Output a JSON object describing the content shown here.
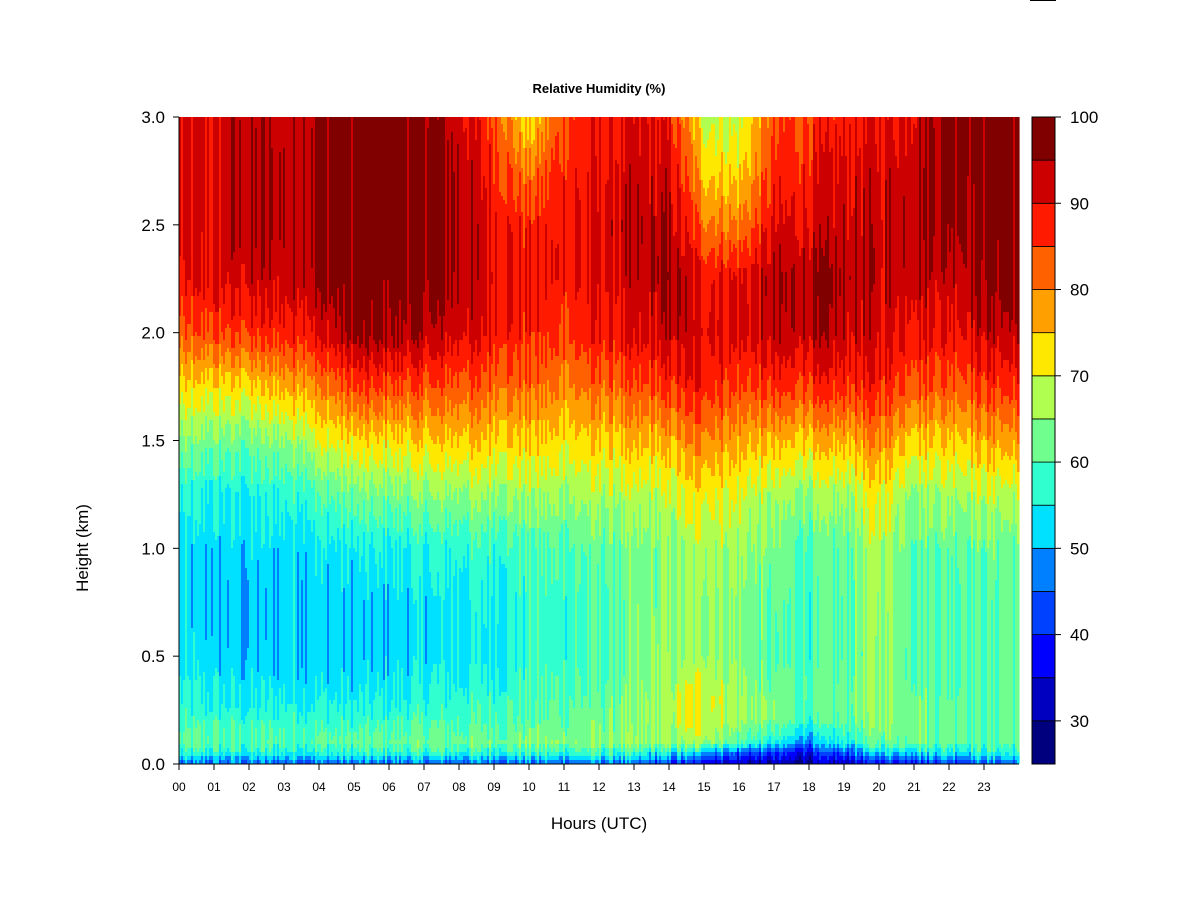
{
  "chart_data": {
    "type": "heatmap",
    "title": "Relative Humidity (%)",
    "xlabel": "Hours (UTC)",
    "ylabel": "Height (km)",
    "x_ticks": [
      "00",
      "01",
      "02",
      "03",
      "04",
      "05",
      "06",
      "07",
      "08",
      "09",
      "10",
      "11",
      "12",
      "13",
      "14",
      "15",
      "16",
      "17",
      "18",
      "19",
      "20",
      "21",
      "22",
      "23"
    ],
    "y_ticks": [
      "0.0",
      "0.5",
      "1.0",
      "1.5",
      "2.0",
      "2.5",
      "3.0"
    ],
    "xlim": [
      0,
      23.9
    ],
    "ylim": [
      0,
      3.0
    ],
    "colorbar": {
      "ticks": [
        "30",
        "40",
        "50",
        "60",
        "70",
        "80",
        "90",
        "100"
      ],
      "range": [
        25,
        100
      ],
      "levels": [
        {
          "min": 25,
          "max": 30,
          "color": "#00007f"
        },
        {
          "min": 30,
          "max": 35,
          "color": "#0000c0"
        },
        {
          "min": 35,
          "max": 40,
          "color": "#0000ff"
        },
        {
          "min": 40,
          "max": 45,
          "color": "#0040ff"
        },
        {
          "min": 45,
          "max": 50,
          "color": "#0080ff"
        },
        {
          "min": 50,
          "max": 55,
          "color": "#00e0ff"
        },
        {
          "min": 55,
          "max": 60,
          "color": "#30ffcf"
        },
        {
          "min": 60,
          "max": 65,
          "color": "#70ff8f"
        },
        {
          "min": 65,
          "max": 70,
          "color": "#b0ff50"
        },
        {
          "min": 70,
          "max": 75,
          "color": "#ffe800"
        },
        {
          "min": 75,
          "max": 80,
          "color": "#ffa000"
        },
        {
          "min": 80,
          "max": 85,
          "color": "#ff6000"
        },
        {
          "min": 85,
          "max": 90,
          "color": "#ff1a00"
        },
        {
          "min": 90,
          "max": 95,
          "color": "#cc0000"
        },
        {
          "min": 95,
          "max": 100,
          "color": "#800000"
        }
      ]
    },
    "heights_km": [
      0.0,
      0.05,
      0.1,
      0.2,
      0.3,
      0.4,
      0.5,
      0.75,
      1.0,
      1.25,
      1.5,
      1.75,
      2.0,
      2.25,
      2.5,
      2.75,
      3.0
    ],
    "profiles": [
      {
        "hour": 0,
        "rh": [
          45,
          55,
          60,
          58,
          56,
          54,
          53,
          52,
          52,
          55,
          63,
          72,
          82,
          88,
          90,
          90,
          90
        ]
      },
      {
        "hour": 1,
        "rh": [
          45,
          56,
          60,
          58,
          55,
          53,
          52,
          52,
          52,
          55,
          63,
          73,
          85,
          91,
          92,
          92,
          92
        ]
      },
      {
        "hour": 2,
        "rh": [
          45,
          55,
          60,
          57,
          54,
          52,
          51,
          50,
          52,
          55,
          62,
          73,
          86,
          92,
          94,
          94,
          93
        ]
      },
      {
        "hour": 3,
        "rh": [
          45,
          56,
          60,
          58,
          55,
          53,
          52,
          52,
          53,
          57,
          65,
          77,
          88,
          93,
          94,
          94,
          93
        ]
      },
      {
        "hour": 4,
        "rh": [
          45,
          56,
          61,
          58,
          55,
          53,
          52,
          52,
          54,
          60,
          70,
          80,
          91,
          96,
          97,
          97,
          96
        ]
      },
      {
        "hour": 5,
        "rh": [
          45,
          56,
          61,
          57,
          54,
          52,
          51,
          51,
          54,
          62,
          73,
          85,
          96,
          98,
          98,
          98,
          98
        ]
      },
      {
        "hour": 6,
        "rh": [
          45,
          57,
          62,
          58,
          55,
          53,
          52,
          52,
          55,
          63,
          73,
          85,
          96,
          98,
          98,
          98,
          98
        ]
      },
      {
        "hour": 7,
        "rh": [
          45,
          57,
          62,
          59,
          56,
          54,
          53,
          53,
          56,
          64,
          74,
          84,
          94,
          97,
          98,
          98,
          97
        ]
      },
      {
        "hour": 8,
        "rh": [
          45,
          57,
          62,
          59,
          57,
          55,
          54,
          54,
          57,
          65,
          75,
          84,
          92,
          95,
          96,
          95,
          92
        ]
      },
      {
        "hour": 9,
        "rh": [
          45,
          57,
          63,
          60,
          58,
          56,
          55,
          56,
          58,
          66,
          75,
          83,
          90,
          91,
          90,
          88,
          85
        ]
      },
      {
        "hour": 10,
        "rh": [
          45,
          58,
          63,
          61,
          59,
          58,
          57,
          57,
          59,
          66,
          74,
          82,
          87,
          88,
          87,
          80,
          72
        ]
      },
      {
        "hour": 11,
        "rh": [
          45,
          58,
          64,
          62,
          60,
          59,
          58,
          58,
          60,
          66,
          73,
          80,
          86,
          89,
          89,
          88,
          85
        ]
      },
      {
        "hour": 12,
        "rh": [
          45,
          58,
          64,
          62,
          61,
          60,
          60,
          60,
          61,
          67,
          74,
          82,
          89,
          91,
          91,
          90,
          88
        ]
      },
      {
        "hour": 13,
        "rh": [
          44,
          56,
          64,
          63,
          63,
          62,
          62,
          62,
          62,
          67,
          75,
          83,
          90,
          92,
          93,
          92,
          90
        ]
      },
      {
        "hour": 14,
        "rh": [
          40,
          54,
          65,
          67,
          67,
          66,
          65,
          64,
          64,
          68,
          76,
          86,
          93,
          95,
          94,
          92,
          88
        ]
      },
      {
        "hour": 15,
        "rh": [
          38,
          52,
          67,
          71,
          72,
          69,
          67,
          67,
          68,
          73,
          81,
          89,
          92,
          90,
          82,
          75,
          70
        ]
      },
      {
        "hour": 16,
        "rh": [
          32,
          44,
          60,
          66,
          66,
          65,
          64,
          64,
          66,
          70,
          77,
          85,
          91,
          90,
          80,
          73,
          68
        ]
      },
      {
        "hour": 17,
        "rh": [
          30,
          40,
          55,
          62,
          62,
          61,
          60,
          61,
          62,
          66,
          75,
          86,
          93,
          94,
          90,
          86,
          84
        ]
      },
      {
        "hour": 18,
        "rh": [
          30,
          37,
          48,
          58,
          60,
          60,
          58,
          58,
          60,
          65,
          75,
          86,
          94,
          95,
          91,
          88,
          86
        ]
      },
      {
        "hour": 19,
        "rh": [
          33,
          43,
          55,
          61,
          62,
          61,
          60,
          60,
          61,
          66,
          76,
          87,
          93,
          94,
          93,
          91,
          88
        ]
      },
      {
        "hour": 20,
        "rh": [
          38,
          52,
          62,
          65,
          66,
          66,
          66,
          67,
          68,
          72,
          80,
          88,
          92,
          93,
          93,
          92,
          90
        ]
      },
      {
        "hour": 21,
        "rh": [
          41,
          55,
          63,
          63,
          63,
          62,
          62,
          62,
          62,
          66,
          75,
          85,
          91,
          94,
          95,
          94,
          92
        ]
      },
      {
        "hour": 22,
        "rh": [
          42,
          55,
          62,
          62,
          62,
          61,
          61,
          61,
          62,
          67,
          75,
          84,
          90,
          93,
          97,
          98,
          98
        ]
      },
      {
        "hour": 23,
        "rh": [
          44,
          56,
          61,
          61,
          61,
          61,
          61,
          61,
          62,
          68,
          77,
          86,
          93,
          97,
          98,
          98,
          98
        ]
      },
      {
        "hour": 23.9,
        "rh": [
          44,
          56,
          61,
          61,
          61,
          61,
          61,
          61,
          62,
          68,
          78,
          87,
          94,
          98,
          98,
          98,
          98
        ]
      }
    ]
  }
}
